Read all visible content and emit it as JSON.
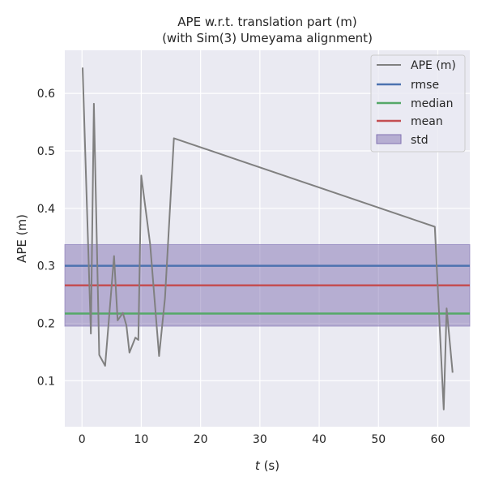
{
  "chart_data": {
    "type": "line",
    "title": "APE w.r.t. translation part (m)",
    "subtitle": "(with Sim(3) Umeyama alignment)",
    "xlabel_var": "t",
    "xlabel_unit": " (s)",
    "ylabel": "APE (m)",
    "xlim": [
      -2.9,
      65.4
    ],
    "ylim": [
      0.02,
      0.675
    ],
    "xticks": [
      0,
      10,
      20,
      30,
      40,
      50,
      60
    ],
    "yticks": [
      0.1,
      0.2,
      0.3,
      0.4,
      0.5,
      0.6
    ],
    "grid": true,
    "legend_position": "top-right",
    "colors": {
      "background": "#eaeaf2",
      "grid": "#ffffff",
      "ape": "#808080",
      "rmse": "#4c72b0",
      "median": "#55a868",
      "mean": "#c44e52",
      "std": "#8172b2"
    },
    "legend": [
      "APE (m)",
      "rmse",
      "median",
      "mean",
      "std"
    ],
    "series": [
      {
        "name": "APE (m)",
        "x": [
          0.1,
          1.5,
          2.0,
          2.9,
          3.9,
          5.4,
          6.0,
          6.9,
          7.5,
          8.0,
          9.0,
          9.5,
          10.0,
          11.5,
          13.0,
          14.0,
          15.5,
          59.5,
          61.0,
          61.5,
          62.5
        ],
        "y": [
          0.645,
          0.182,
          0.582,
          0.145,
          0.126,
          0.317,
          0.205,
          0.218,
          0.196,
          0.149,
          0.175,
          0.171,
          0.457,
          0.337,
          0.143,
          0.244,
          0.522,
          0.368,
          0.05,
          0.226,
          0.114
        ]
      }
    ],
    "stats": {
      "rmse": 0.3,
      "median": 0.217,
      "mean": 0.266,
      "std": 0.071
    }
  }
}
